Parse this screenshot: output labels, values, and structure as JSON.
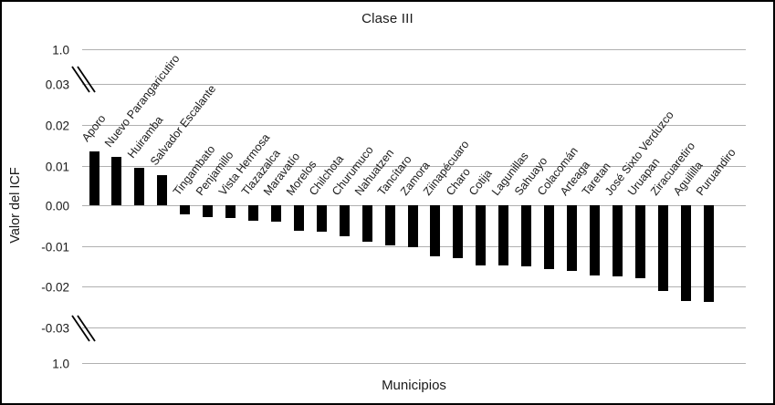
{
  "chart_data": {
    "type": "bar",
    "title": "Clase III",
    "xlabel": "Municipios",
    "ylabel": "Valor del ICF",
    "legend": null,
    "grid": "horizontal",
    "bar_color": "#000000",
    "gridline_color": "#b0b0b0",
    "axis_breaks": "double slash marks between 1.0 and 0.03 at top, and between -0.03 and 1.0 at bottom of y-axis",
    "y_tick_labels": [
      "1.0",
      "0.03",
      "0.02",
      "0.01",
      "0.00",
      "-0.01",
      "-0.02",
      "-0.03",
      "1.0"
    ],
    "ylim_inner": [
      -0.03,
      0.03
    ],
    "categories": [
      "Aporo",
      "Nuevo Parangaricutiro",
      "Huiramba",
      "Salvador Escalante",
      "Tingambato",
      "Penjamillo",
      "Vista Hermosa",
      "Tlazazalca",
      "Maravatío",
      "Morelos",
      "Chilchota",
      "Churumuco",
      "Nahuatzen",
      "Tancítaro",
      "Zamora",
      "Ziinapécuaro",
      "Charo",
      "Cotija",
      "Lagunillas",
      "Sahuayo",
      "Colacomán",
      "Arteaga",
      "Taretan",
      "José Sixto Verduzco",
      "Uruapan",
      "Ziracuaretiro",
      "Aguililla",
      "Puruandiro"
    ],
    "values": [
      0.0133,
      0.012,
      0.0094,
      0.0075,
      -0.0022,
      -0.0029,
      -0.0031,
      -0.0038,
      -0.0042,
      -0.0064,
      -0.0066,
      -0.0078,
      -0.009,
      -0.0099,
      -0.0104,
      -0.0128,
      -0.0131,
      -0.015,
      -0.0151,
      -0.0152,
      -0.016,
      -0.0164,
      -0.0176,
      -0.0178,
      -0.0181,
      -0.0213,
      -0.0239,
      -0.0241
    ]
  }
}
